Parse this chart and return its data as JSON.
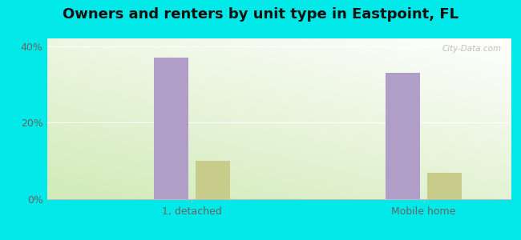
{
  "title": "Owners and renters by unit type in Eastpoint, FL",
  "categories": [
    "1, detached",
    "Mobile home"
  ],
  "owner_values": [
    37.0,
    33.0
  ],
  "renter_values": [
    10.0,
    7.0
  ],
  "owner_color": "#b09ec9",
  "renter_color": "#c8cc8a",
  "bar_width": 0.3,
  "ylim": [
    0,
    42
  ],
  "yticks": [
    0,
    20,
    40
  ],
  "ytick_labels": [
    "0%",
    "20%",
    "40%"
  ],
  "outer_bg": "#00e8e8",
  "title_fontsize": 13,
  "tick_fontsize": 9,
  "legend_fontsize": 9,
  "watermark": "City-Data.com"
}
